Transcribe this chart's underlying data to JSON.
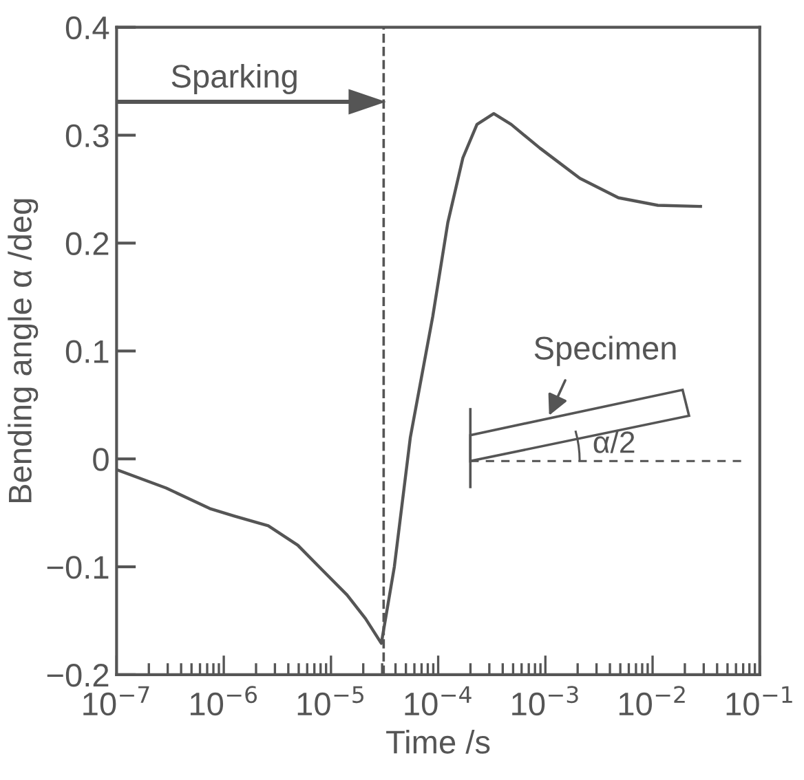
{
  "chart_data": {
    "type": "line",
    "xlabel": "Time /s",
    "ylabel": "Bending angle α /deg",
    "log": "x",
    "x": [
      1e-07,
      2.9e-07,
      7.4e-07,
      1.26e-06,
      2.6e-06,
      4.9e-06,
      8.3e-06,
      1.41e-05,
      2.1e-05,
      2.95e-05,
      3.9e-05,
      5.5e-05,
      8.9e-05,
      0.000123,
      0.00017,
      0.00023,
      0.00033,
      0.00048,
      0.00089,
      0.0021,
      0.0048,
      0.0112,
      0.028
    ],
    "series": [
      {
        "color": "#555555",
        "values": [
          -0.01,
          -0.027,
          -0.046,
          -0.053,
          -0.062,
          -0.08,
          -0.103,
          -0.126,
          -0.148,
          -0.171,
          -0.1,
          0.02,
          0.132,
          0.219,
          0.279,
          0.31,
          0.32,
          0.31,
          0.288,
          0.26,
          0.242,
          0.235,
          0.234
        ]
      }
    ],
    "xlim": [
      1e-07,
      0.1
    ],
    "ylim": [
      -0.2,
      0.4
    ],
    "xticks": [
      {
        "value": 1e-07,
        "label": "10$^{−7}$"
      },
      {
        "value": 1e-06,
        "label": "10$^{−6}$"
      },
      {
        "value": 1e-05,
        "label": "10$^{−5}$"
      },
      {
        "value": 0.0001,
        "label": "10$^{−4}$"
      },
      {
        "value": 0.001,
        "label": "10$^{−3}$"
      },
      {
        "value": 0.01,
        "label": "10$^{−2}$"
      },
      {
        "value": 0.1,
        "label": "10$^{−1}$"
      }
    ],
    "yticks": [
      {
        "value": -0.2,
        "label": "−0.2"
      },
      {
        "value": -0.1,
        "label": "−0.1"
      },
      0,
      0.1,
      0.2,
      0.3,
      0.4
    ],
    "ref_lines": [
      {
        "axis": "x",
        "value": 3.1e-05,
        "line_style": "dashed",
        "color": "#555555"
      }
    ],
    "annotations": [
      "Sparking",
      "Specimen",
      "α/2"
    ],
    "grid": false,
    "legend": false,
    "marker": "none",
    "line_style": "solid"
  }
}
